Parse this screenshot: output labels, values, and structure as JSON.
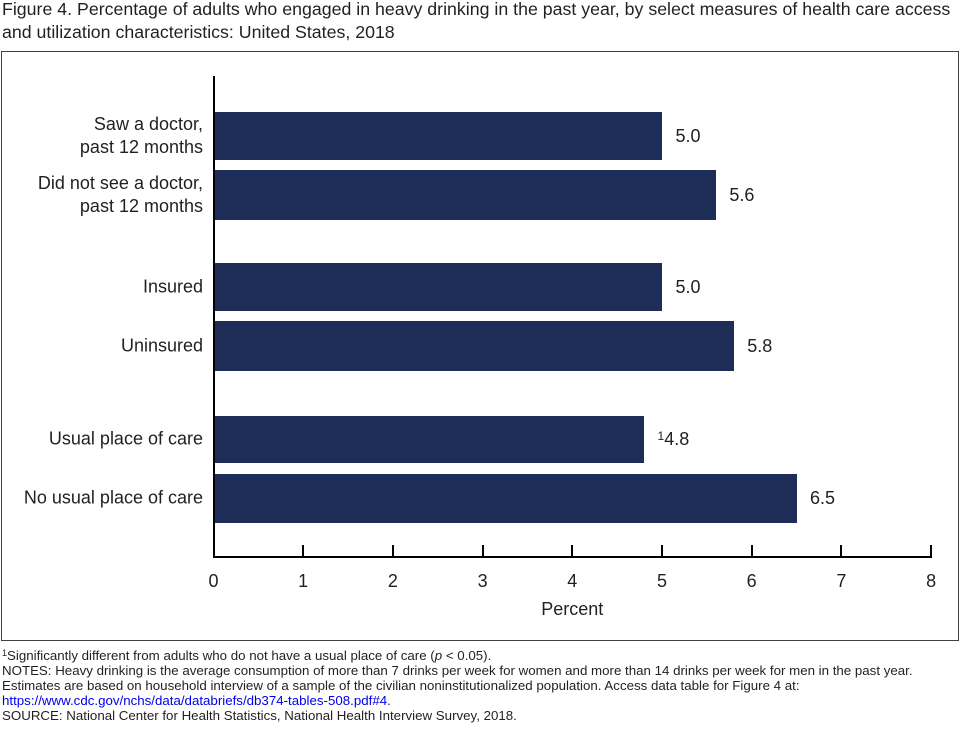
{
  "figure": {
    "title_line1": "Figure 4. Percentage of adults who engaged in heavy drinking in the past year, by select measures of health care access",
    "title_line2": "and utilization characteristics: United States, 2018",
    "title_full": "Figure 4. Percentage of adults who engaged in heavy drinking in the past year, by select measures of health care access and utilization characteristics: United States, 2018"
  },
  "chart_data": {
    "type": "bar",
    "orientation": "horizontal",
    "title": "Figure 4. Percentage of adults who engaged in heavy drinking in the past year, by select measures of health care access and utilization characteristics: United States, 2018",
    "categories": [
      "Saw a doctor, past 12 months",
      "Did not see a doctor, past 12 months",
      "Insured",
      "Uninsured",
      "Usual place of care",
      "No usual place of care"
    ],
    "values": [
      5.0,
      5.6,
      5.0,
      5.8,
      4.8,
      6.5
    ],
    "bars": [
      {
        "category": "Saw a doctor, past 12 months",
        "label_lines": [
          "Saw a doctor,",
          "past 12 months"
        ],
        "value": 5.0,
        "value_label": "5.0",
        "superscript": ""
      },
      {
        "category": "Did not see a doctor, past 12 months",
        "label_lines": [
          "Did not see a doctor,",
          "past 12 months"
        ],
        "value": 5.6,
        "value_label": "5.6",
        "superscript": ""
      },
      {
        "category": "Insured",
        "label_lines": [
          "Insured"
        ],
        "value": 5.0,
        "value_label": "5.0",
        "superscript": ""
      },
      {
        "category": "Uninsured",
        "label_lines": [
          "Uninsured"
        ],
        "value": 5.8,
        "value_label": "5.8",
        "superscript": ""
      },
      {
        "category": "Usual place of care",
        "label_lines": [
          "Usual place of care"
        ],
        "value": 4.8,
        "value_label": "4.8",
        "superscript": "1"
      },
      {
        "category": "No usual place of care",
        "label_lines": [
          "No usual place of care"
        ],
        "value": 6.5,
        "value_label": "6.5",
        "superscript": ""
      }
    ],
    "xlabel": "Percent",
    "ylabel": "",
    "xlim": [
      0,
      8
    ],
    "xticks": [
      "0",
      "1",
      "2",
      "3",
      "4",
      "5",
      "6",
      "7",
      "8"
    ],
    "grid": false,
    "legend": false,
    "bar_color": "#1e2c58",
    "axis_color": "#000000"
  },
  "footnotes": {
    "note1": {
      "sup": "1",
      "pre": "Significantly different from adults who do not have a usual place of care (",
      "italic": "p",
      "post": " < 0.05)."
    },
    "notes_line1": "NOTES: Heavy drinking is the average consumption of more than 7 drinks per week for women and more than 14 drinks per week for men in the past year.",
    "notes_line2": "Estimates are based on household interview of a sample of the civilian noninstitutionalized population. Access data table for Figure 4 at:",
    "link_text": "https://www.cdc.gov/nchs/data/databriefs/db374-tables-508.pdf#4",
    "link_suffix": ".",
    "source_line": "SOURCE: National Center for Health Statistics, National Health Interview Survey, 2018."
  }
}
